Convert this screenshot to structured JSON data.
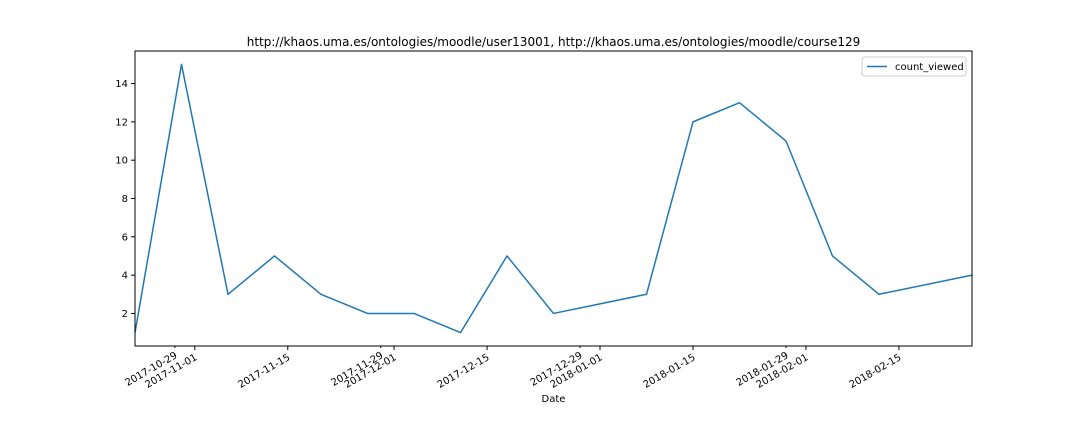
{
  "chart_data": {
    "type": "line",
    "title": "http://khaos.uma.es/ontologies/moodle/user13001, http://khaos.uma.es/ontologies/moodle/course129",
    "xlabel": "Date",
    "ylabel": "",
    "x": [
      "2017-10-23",
      "2017-10-30",
      "2017-11-06",
      "2017-11-13",
      "2017-11-20",
      "2017-11-27",
      "2017-12-04",
      "2017-12-11",
      "2017-12-18",
      "2017-12-25",
      "2018-01-08",
      "2018-01-15",
      "2018-01-22",
      "2018-01-29",
      "2018-02-05",
      "2018-02-12",
      "2018-02-26"
    ],
    "series": [
      {
        "name": "count_viewed",
        "color": "#1f77b4",
        "values": [
          1,
          15,
          3,
          5,
          3,
          2,
          2,
          1,
          5,
          2,
          3,
          12,
          13,
          11,
          5,
          3,
          4
        ]
      }
    ],
    "xlim": [
      "2017-10-23",
      "2018-02-26"
    ],
    "ylim": [
      0.3,
      15.7
    ],
    "yticks": [
      2,
      4,
      6,
      8,
      10,
      12,
      14
    ],
    "xticks_major": [
      {
        "date": "2017-11-01",
        "label": "2017-11-01"
      },
      {
        "date": "2017-11-15",
        "label": "2017-11-15"
      },
      {
        "date": "2017-12-01",
        "label": "2017-12-01"
      },
      {
        "date": "2017-12-15",
        "label": "2017-12-15"
      },
      {
        "date": "2018-01-01",
        "label": "2018-01-01"
      },
      {
        "date": "2018-01-15",
        "label": "2018-01-15"
      },
      {
        "date": "2018-02-01",
        "label": "2018-02-01"
      },
      {
        "date": "2018-02-15",
        "label": "2018-02-15"
      }
    ],
    "xticks_minor": [
      {
        "date": "2017-10-29",
        "label": "2017-10-29"
      },
      {
        "date": "2017-11-29",
        "label": "2017-11-29"
      },
      {
        "date": "2017-12-29",
        "label": "2017-12-29"
      },
      {
        "date": "2018-01-29",
        "label": "2018-01-29"
      }
    ],
    "legend": {
      "position": "upper-right",
      "entries": [
        "count_viewed"
      ]
    },
    "grid": false
  }
}
